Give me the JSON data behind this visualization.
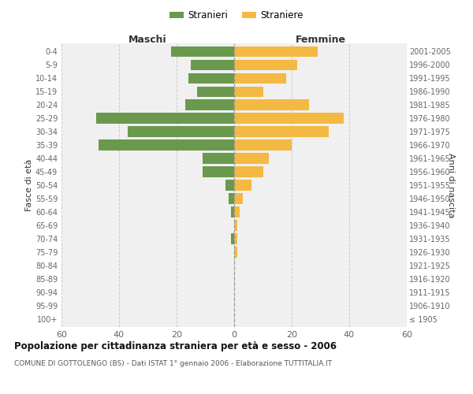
{
  "age_groups": [
    "100+",
    "95-99",
    "90-94",
    "85-89",
    "80-84",
    "75-79",
    "70-74",
    "65-69",
    "60-64",
    "55-59",
    "50-54",
    "45-49",
    "40-44",
    "35-39",
    "30-34",
    "25-29",
    "20-24",
    "15-19",
    "10-14",
    "5-9",
    "0-4"
  ],
  "birth_years": [
    "≤ 1905",
    "1906-1910",
    "1911-1915",
    "1916-1920",
    "1921-1925",
    "1926-1930",
    "1931-1935",
    "1936-1940",
    "1941-1945",
    "1946-1950",
    "1951-1955",
    "1956-1960",
    "1961-1965",
    "1966-1970",
    "1971-1975",
    "1976-1980",
    "1981-1985",
    "1986-1990",
    "1991-1995",
    "1996-2000",
    "2001-2005"
  ],
  "maschi": [
    0,
    0,
    0,
    0,
    0,
    0,
    1,
    0,
    1,
    2,
    3,
    11,
    11,
    47,
    37,
    48,
    17,
    13,
    16,
    15,
    22
  ],
  "femmine": [
    0,
    0,
    0,
    0,
    0,
    1,
    1,
    1,
    2,
    3,
    6,
    10,
    12,
    20,
    33,
    38,
    26,
    10,
    18,
    22,
    29
  ],
  "maschi_color": "#6a994e",
  "femmine_color": "#f4b942",
  "title": "Popolazione per cittadinanza straniera per età e sesso - 2006",
  "subtitle": "COMUNE DI GOTTOLENGO (BS) - Dati ISTAT 1° gennaio 2006 - Elaborazione TUTTITALIA.IT",
  "header_maschi": "Maschi",
  "header_femmine": "Femmine",
  "ylabel_left": "Fasce di età",
  "ylabel_right": "Anni di nascita",
  "legend_stranieri": "Stranieri",
  "legend_straniere": "Straniere",
  "xlim": 60,
  "bg_plot": "#f0f0f0",
  "bg_fig": "#ffffff",
  "grid_color": "#cccccc",
  "tick_color": "#666666"
}
